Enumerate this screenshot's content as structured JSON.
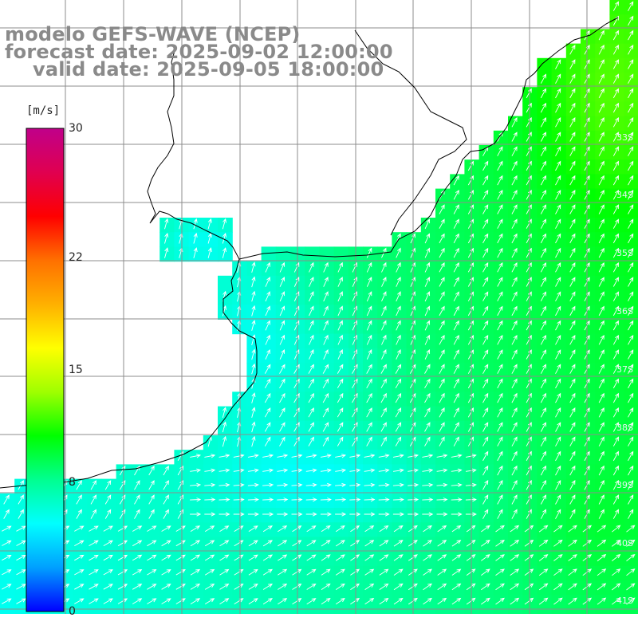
{
  "title": {
    "line1": "modelo GEFS-WAVE (NCEP)",
    "line2": "forecast date: 2025-09-02 12:00:00",
    "line3": "valid date: 2025-09-05 18:00:00"
  },
  "colorbar": {
    "unit": "[m/s]",
    "ticks": [
      {
        "label": "30",
        "value": 30
      },
      {
        "label": "22",
        "value": 22
      },
      {
        "label": "15",
        "value": 15
      },
      {
        "label": "8",
        "value": 8
      },
      {
        "label": "0",
        "value": 0
      }
    ],
    "range": [
      0,
      30
    ],
    "colors": [
      "#0000ff",
      "#00a0ff",
      "#00ffff",
      "#00ff90",
      "#00ff00",
      "#a0ff00",
      "#ffff00",
      "#ffb000",
      "#ff7000",
      "#ff0000",
      "#e00050",
      "#c0008a"
    ]
  },
  "map": {
    "variable": "wind speed",
    "units": "m/s",
    "latitude_labels": [
      "33S",
      "34S",
      "35S",
      "36S",
      "37S",
      "38S",
      "39S",
      "40S",
      "41S"
    ],
    "longitude_labels": [
      "",
      "",
      "",
      "",
      "",
      "",
      "",
      "",
      "",
      "",
      ""
    ],
    "wind_speed_range_shown": [
      4,
      12
    ],
    "grid": true,
    "colors": {
      "land": "#ffffff",
      "coastline": "#000000",
      "gridline": "#8c8c8c"
    }
  }
}
